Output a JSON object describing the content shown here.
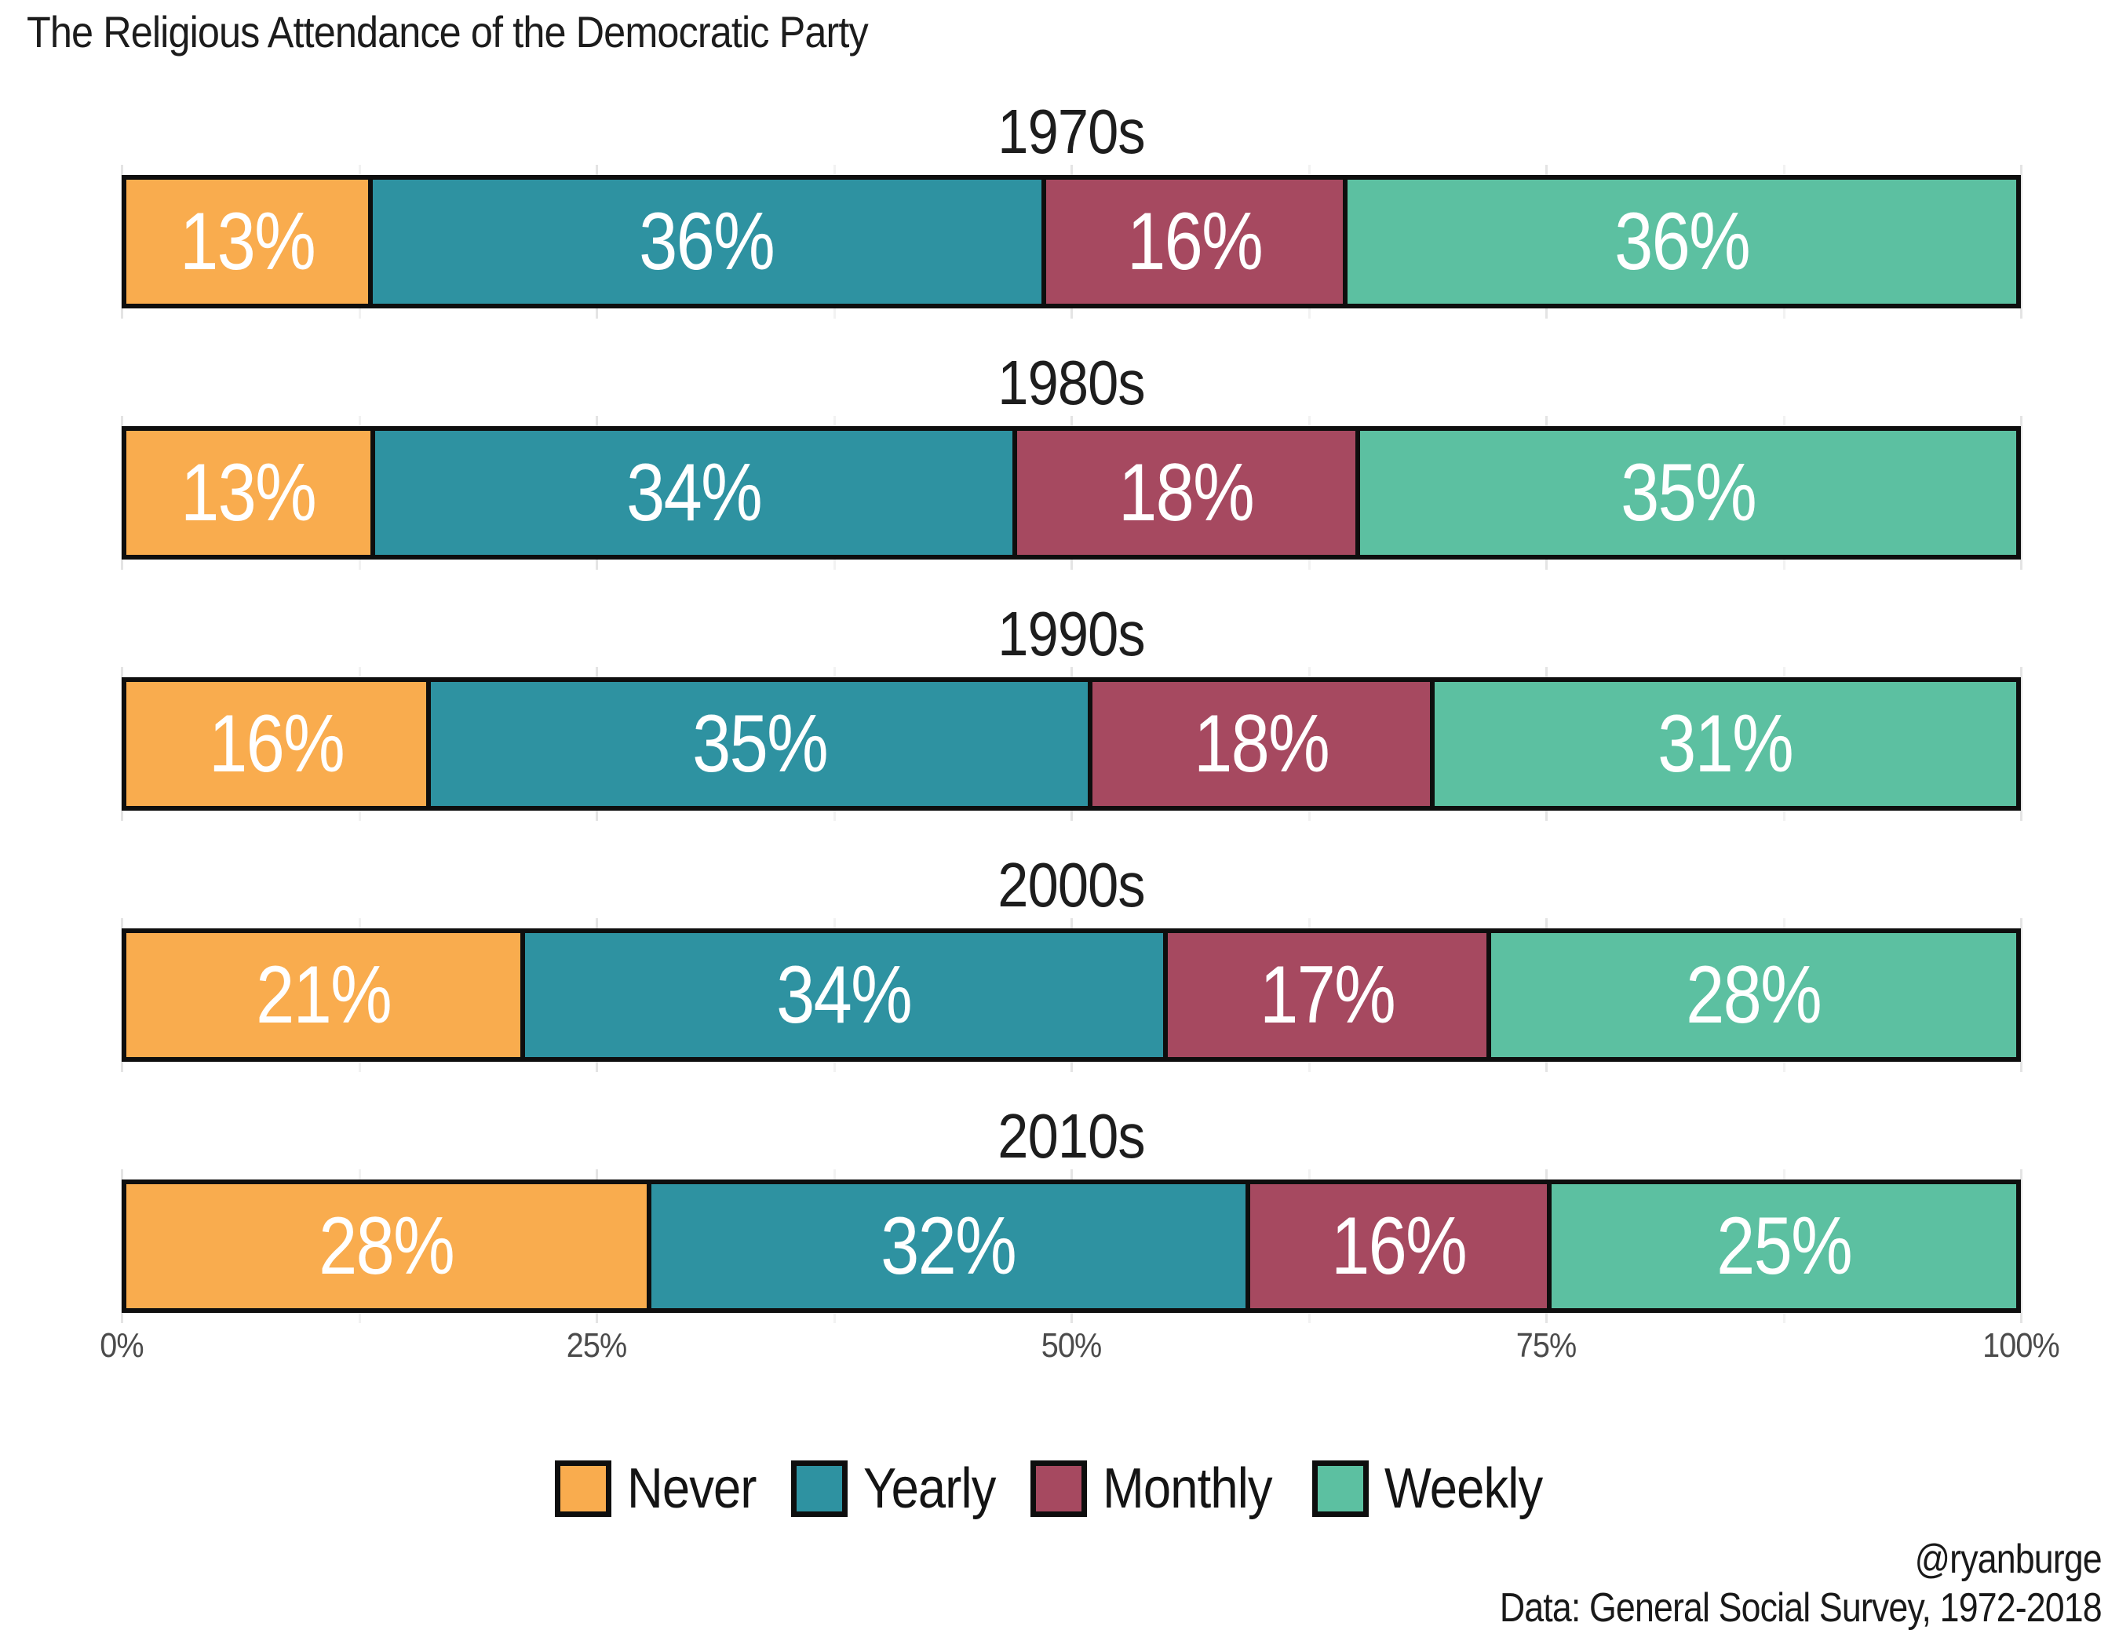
{
  "title": "The Religious Attendance of the Democratic Party",
  "credits": {
    "handle": "@ryanburge",
    "source": "Data: General Social Survey, 1972-2018"
  },
  "colors": {
    "ink": "#0e0e0e",
    "title_text": "#1c1c1c",
    "axis_text": "#4b4b4b",
    "grid_major": "#e4e4e4",
    "grid_minor": "#f2f2f2",
    "bar_label_text": "#ffffff"
  },
  "chart_data": {
    "type": "bar",
    "variant": "100pct-stacked-horizontal",
    "title": "The Religious Attendance of the Democratic Party",
    "facets": [
      "1970s",
      "1980s",
      "1990s",
      "2000s",
      "2010s"
    ],
    "series": [
      {
        "name": "Never",
        "color": "#F9AC4E",
        "values": [
          13,
          13,
          16,
          21,
          28
        ]
      },
      {
        "name": "Yearly",
        "color": "#2E92A1",
        "values": [
          36,
          34,
          35,
          34,
          32
        ]
      },
      {
        "name": "Monthly",
        "color": "#A64960",
        "values": [
          16,
          18,
          18,
          17,
          16
        ]
      },
      {
        "name": "Weekly",
        "color": "#5CC0A1",
        "values": [
          36,
          35,
          31,
          28,
          25
        ]
      }
    ],
    "value_label_suffix": "%",
    "x_ticks": [
      "0%",
      "25%",
      "50%",
      "75%",
      "100%"
    ],
    "xlim": [
      0,
      100
    ],
    "grid": {
      "major_pct": [
        0,
        25,
        50,
        75,
        100
      ],
      "minor_pct": [
        12.5,
        37.5,
        62.5,
        87.5
      ]
    },
    "legend_position": "bottom"
  }
}
